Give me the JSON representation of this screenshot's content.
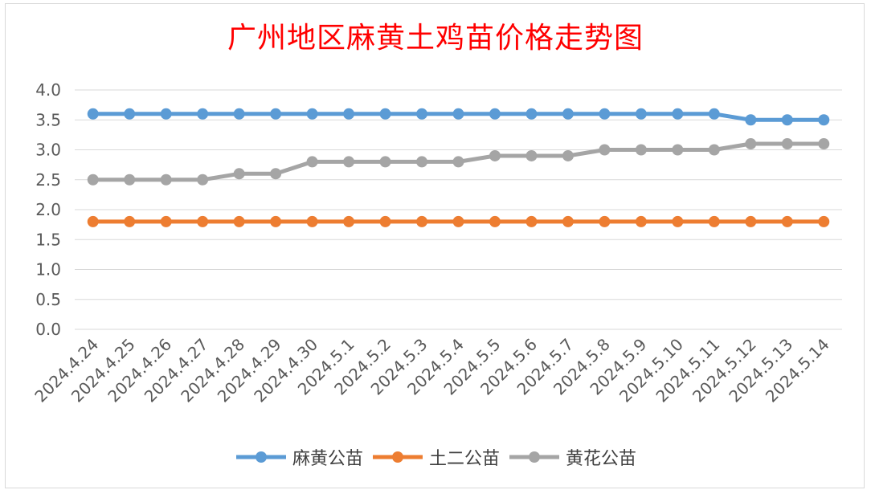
{
  "chart_data": {
    "type": "line",
    "title": "广州地区麻黄土鸡苗价格走势图",
    "xlabel": "",
    "ylabel": "",
    "ylim": [
      0,
      4
    ],
    "y_ticks": [
      "0.0",
      "0.5",
      "1.0",
      "1.5",
      "2.0",
      "2.5",
      "3.0",
      "3.5",
      "4.0"
    ],
    "categories": [
      "2024.4.24",
      "2024.4.25",
      "2024.4.26",
      "2024.4.27",
      "2024.4.28",
      "2024.4.29",
      "2024.4.30",
      "2024.5.1",
      "2024.5.2",
      "2024.5.3",
      "2024.5.4",
      "2024.5.5",
      "2024.5.6",
      "2024.5.7",
      "2024.5.8",
      "2024.5.9",
      "2024.5.10",
      "2024.5.11",
      "2024.5.12",
      "2024.5.13",
      "2024.5.14"
    ],
    "grid": true,
    "legend_position": "bottom",
    "series": [
      {
        "name": "麻黄公苗",
        "color": "#5b9bd5",
        "values": [
          3.6,
          3.6,
          3.6,
          3.6,
          3.6,
          3.6,
          3.6,
          3.6,
          3.6,
          3.6,
          3.6,
          3.6,
          3.6,
          3.6,
          3.6,
          3.6,
          3.6,
          3.6,
          3.5,
          3.5,
          3.5
        ]
      },
      {
        "name": "土二公苗",
        "color": "#ed7d31",
        "values": [
          1.8,
          1.8,
          1.8,
          1.8,
          1.8,
          1.8,
          1.8,
          1.8,
          1.8,
          1.8,
          1.8,
          1.8,
          1.8,
          1.8,
          1.8,
          1.8,
          1.8,
          1.8,
          1.8,
          1.8,
          1.8
        ]
      },
      {
        "name": "黄花公苗",
        "color": "#a5a5a5",
        "values": [
          2.5,
          2.5,
          2.5,
          2.5,
          2.6,
          2.6,
          2.8,
          2.8,
          2.8,
          2.8,
          2.8,
          2.9,
          2.9,
          2.9,
          3.0,
          3.0,
          3.0,
          3.0,
          3.1,
          3.1,
          3.1
        ]
      }
    ]
  }
}
